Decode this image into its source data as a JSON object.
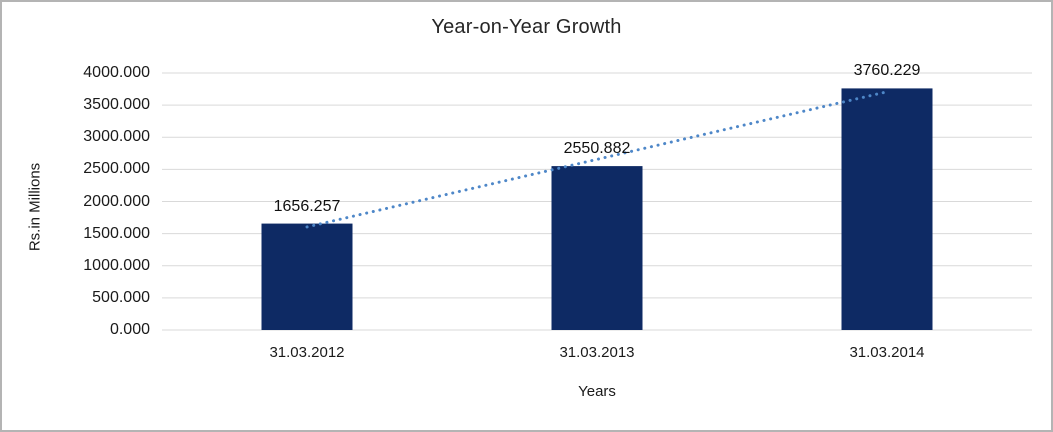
{
  "chart_data": {
    "type": "bar",
    "title": "Year-on-Year Growth",
    "xlabel": "Years",
    "ylabel": "Rs.in Millions",
    "categories": [
      "31.03.2012",
      "31.03.2013",
      "31.03.2014"
    ],
    "values": [
      1656.257,
      2550.882,
      3760.229
    ],
    "data_labels": [
      "1656.257",
      "2550.882",
      "3760.229"
    ],
    "ylim": [
      0,
      4000
    ],
    "ytick_step": 500,
    "ytick_decimals": 3,
    "grid": true,
    "legend": "none",
    "trendline": {
      "type": "linear",
      "style": "dotted"
    },
    "colors": {
      "bar": "#0e2a64",
      "trendline": "#4e87c8",
      "gridline": "#d9d9d9",
      "text": "#1a1a1a",
      "frame_border": "#b4b4b4",
      "background": "#ffffff"
    }
  }
}
